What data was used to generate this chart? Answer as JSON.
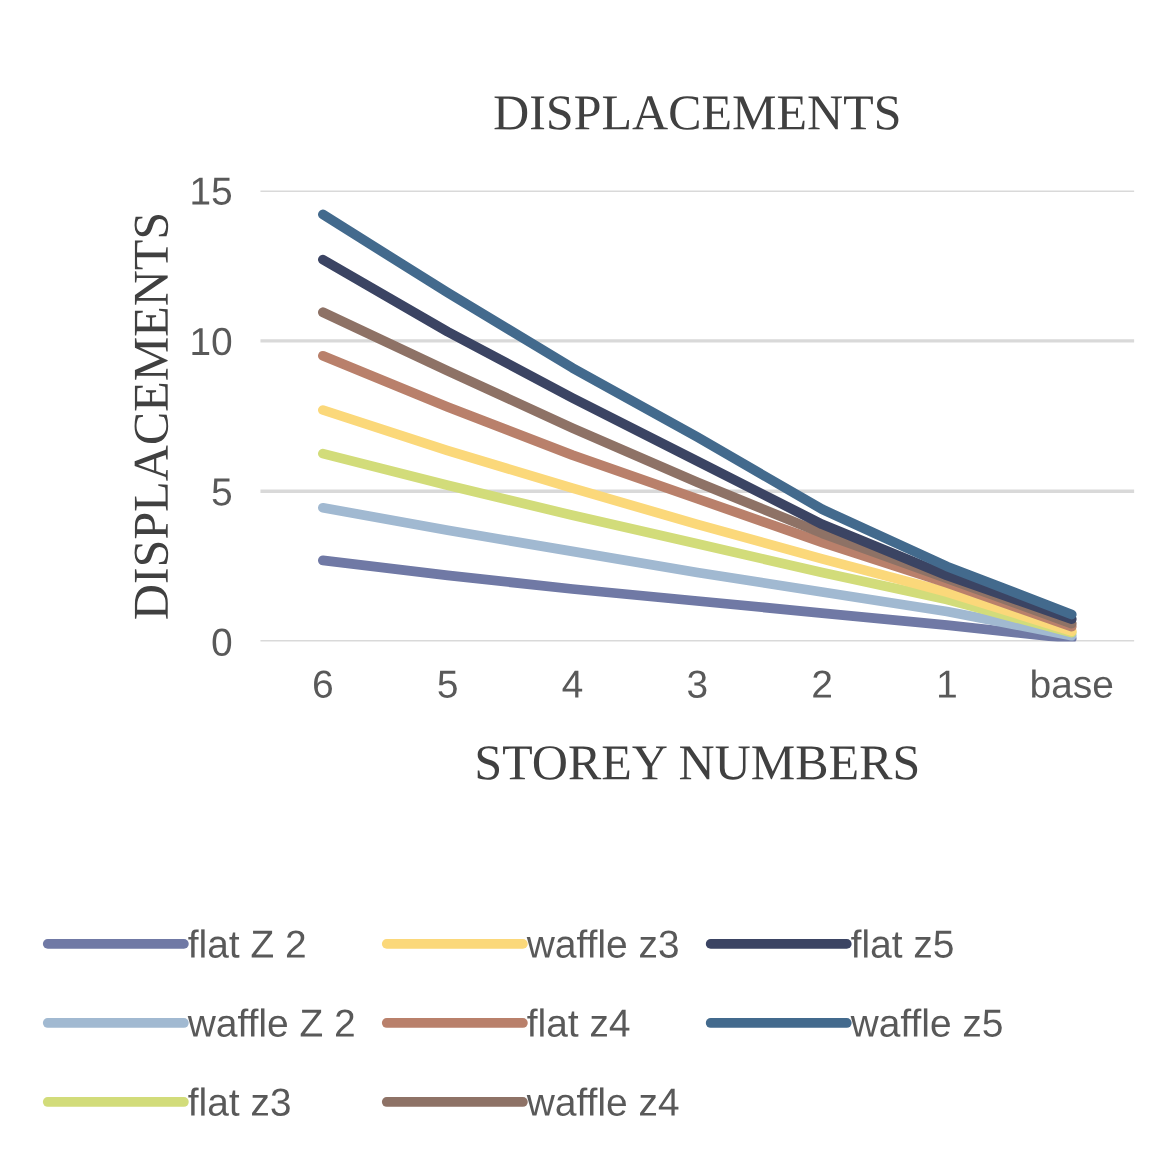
{
  "chart_data": {
    "type": "line",
    "title": "DISPLACEMENTS",
    "xlabel": "STOREY NUMBERS",
    "ylabel": "DISPLACEMENTS",
    "categories": [
      "6",
      "5",
      "4",
      "3",
      "2",
      "1",
      "base"
    ],
    "ylim": [
      0,
      15
    ],
    "yticks": [
      0,
      5,
      10,
      15
    ],
    "grid": "y",
    "legend": "bottom",
    "marker": "none",
    "line_style": "solid",
    "series": [
      {
        "name": "flat Z 2",
        "color": "#7079a5",
        "values": [
          2.7,
          2.2,
          1.75,
          1.35,
          0.95,
          0.55,
          0.1
        ]
      },
      {
        "name": "waffle Z 2",
        "color": "#a1b9d1",
        "values": [
          4.45,
          3.7,
          3.0,
          2.3,
          1.65,
          1.0,
          0.2
        ]
      },
      {
        "name": "flat z3",
        "color": "#d2dc7a",
        "values": [
          6.25,
          5.2,
          4.2,
          3.25,
          2.3,
          1.4,
          0.3
        ]
      },
      {
        "name": "waffle z3",
        "color": "#fbd87a",
        "values": [
          7.7,
          6.35,
          5.1,
          3.9,
          2.75,
          1.65,
          0.35
        ]
      },
      {
        "name": "flat z4",
        "color": "#b9806b",
        "values": [
          9.5,
          7.8,
          6.2,
          4.75,
          3.3,
          1.95,
          0.5
        ]
      },
      {
        "name": "waffle z4",
        "color": "#8e7266",
        "values": [
          10.95,
          9.0,
          7.1,
          5.3,
          3.6,
          2.1,
          0.6
        ]
      },
      {
        "name": "flat z5",
        "color": "#3b4463",
        "values": [
          12.7,
          10.3,
          8.1,
          6.0,
          3.9,
          2.2,
          0.75
        ]
      },
      {
        "name": "waffle z5",
        "color": "#436a8d",
        "values": [
          14.2,
          11.6,
          9.1,
          6.8,
          4.4,
          2.5,
          0.9
        ]
      }
    ]
  }
}
